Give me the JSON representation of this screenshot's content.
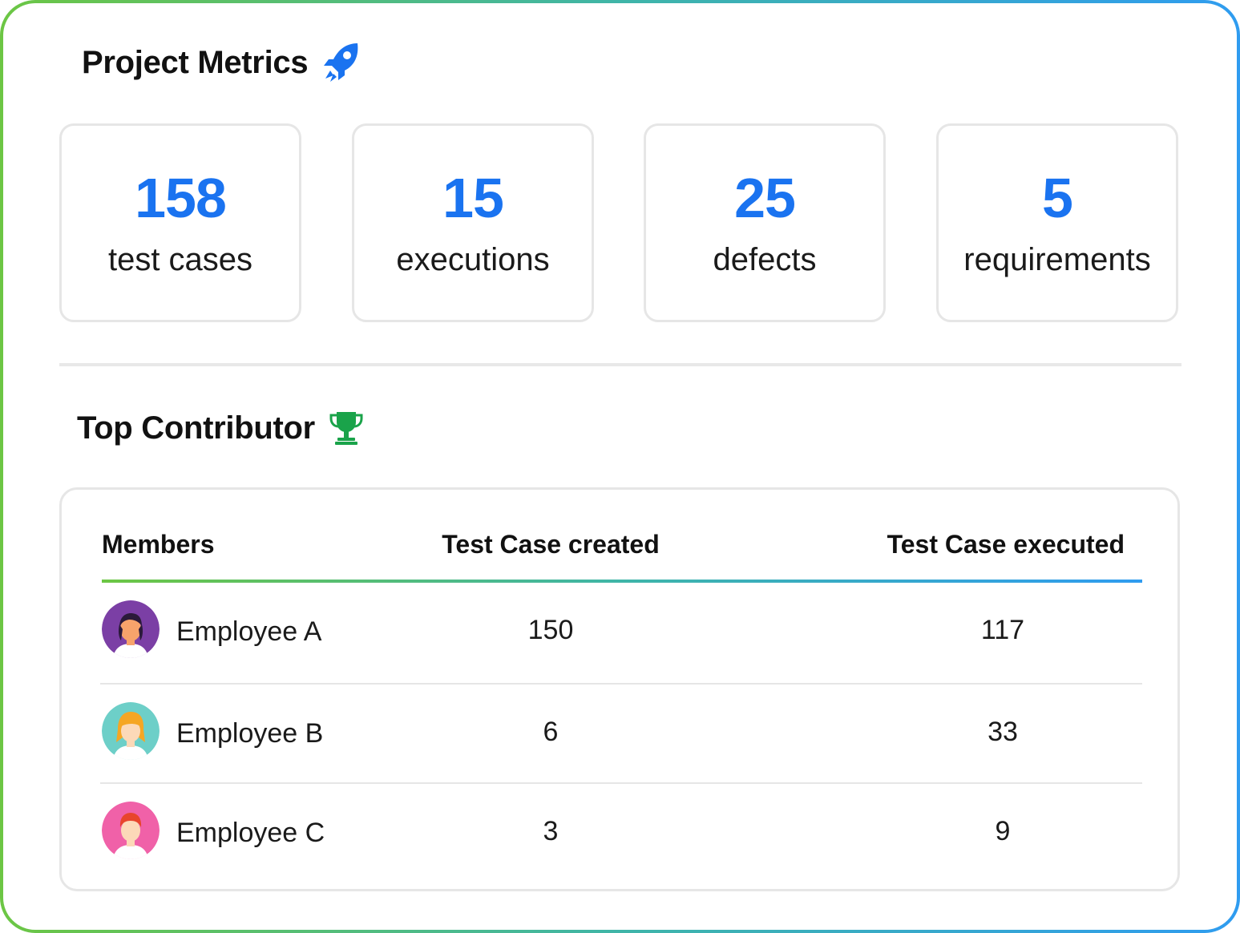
{
  "project_metrics": {
    "title": "Project Metrics",
    "icon": "rocket-icon",
    "accent_color": "#1a73f0",
    "cards": [
      {
        "value": "158",
        "label": "test cases"
      },
      {
        "value": "15",
        "label": "executions"
      },
      {
        "value": "25",
        "label": "defects"
      },
      {
        "value": "5",
        "label": "requirements"
      }
    ]
  },
  "top_contributor": {
    "title": "Top Contributor",
    "icon": "trophy-icon",
    "trophy_color": "#1aa34a",
    "columns": [
      "Members",
      "Test Case created",
      "Test Case executed"
    ],
    "rows": [
      {
        "name": "Employee A",
        "created": "150",
        "executed": "117",
        "avatar_color": "#7b3fa5"
      },
      {
        "name": "Employee B",
        "created": "6",
        "executed": "33",
        "avatar_color": "#6dcfc8"
      },
      {
        "name": "Employee C",
        "created": "3",
        "executed": "9",
        "avatar_color": "#f061a8"
      }
    ]
  },
  "gradient": {
    "start": "#6cc644",
    "end": "#2f9cf0"
  }
}
